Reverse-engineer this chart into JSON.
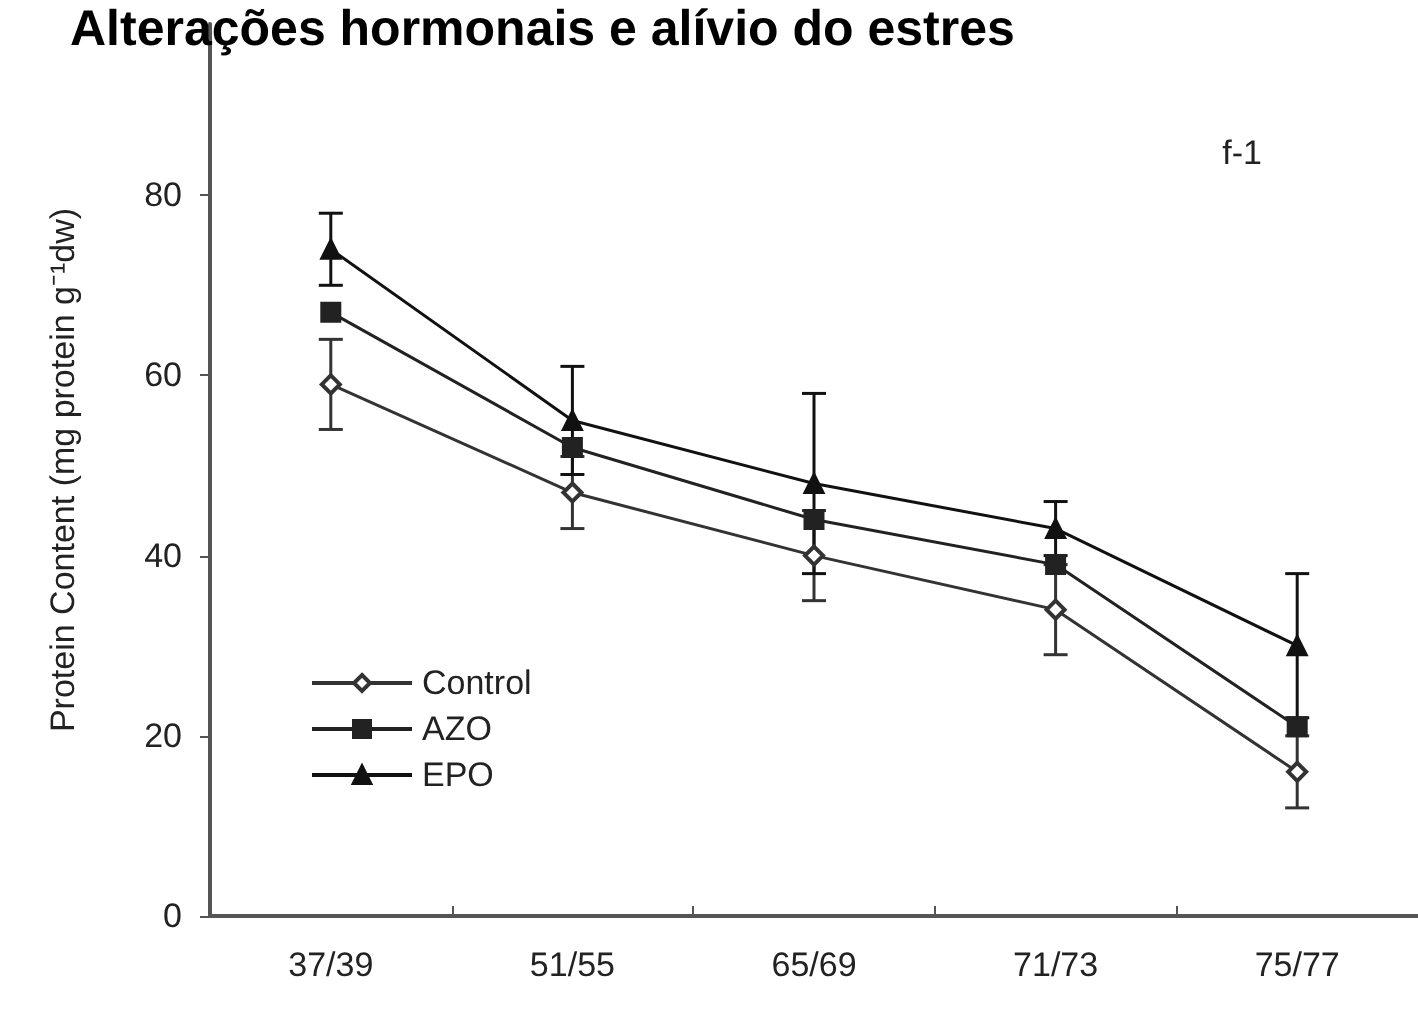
{
  "chart_data": {
    "type": "line",
    "title": "Alterações hormonais e alívio do estres",
    "ylabel": "Protein Content (mg protein g⁻¹dw)",
    "annotations": [
      "f-1"
    ],
    "categories": [
      "37/39",
      "51/55",
      "65/69",
      "71/73",
      "75/77"
    ],
    "series": [
      {
        "name": "Control",
        "color": "#333333",
        "marker": "diamond",
        "values": [
          59,
          47,
          40,
          34,
          16
        ],
        "errors": [
          5,
          4,
          5,
          5,
          4
        ]
      },
      {
        "name": "AZO",
        "color": "#222222",
        "marker": "square",
        "values": [
          67,
          52,
          44,
          39,
          21
        ]
      },
      {
        "name": "EPO",
        "color": "#111111",
        "marker": "triangle",
        "values": [
          74,
          55,
          48,
          43,
          30
        ],
        "errors": [
          4,
          6,
          10,
          3,
          8
        ]
      }
    ],
    "ylim": [
      0,
      99
    ],
    "yticks": [
      0,
      20,
      40,
      60,
      80
    ],
    "grid": false,
    "legend": "bottom left",
    "line_style": "solid"
  }
}
